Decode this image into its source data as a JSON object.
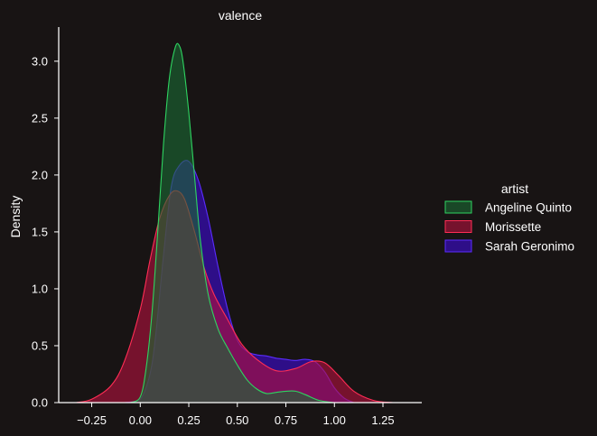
{
  "colors": {
    "background": "#181414",
    "axis": "#ffffff",
    "text": "#ffffff"
  },
  "chart_data": {
    "type": "area",
    "title": "valence",
    "xlabel": "",
    "ylabel": "Density",
    "xlim": [
      -0.42,
      1.45
    ],
    "ylim": [
      0,
      3.3
    ],
    "xticks": [
      -0.25,
      0.0,
      0.25,
      0.5,
      0.75,
      1.0,
      1.25
    ],
    "xtick_labels": [
      "−0.25",
      "0.00",
      "0.25",
      "0.50",
      "0.75",
      "1.00",
      "1.25"
    ],
    "yticks": [
      0.0,
      0.5,
      1.0,
      1.5,
      2.0,
      2.5,
      3.0
    ],
    "ytick_labels": [
      "0.0",
      "0.5",
      "1.0",
      "1.5",
      "2.0",
      "2.5",
      "3.0"
    ],
    "grid": false,
    "legend": {
      "title": "artist",
      "placement": "right",
      "entries": [
        "Angeline Quinto",
        "Morissette",
        "Sarah Geronimo"
      ]
    },
    "series": [
      {
        "name": "Sarah Geronimo",
        "fill": "#3d0ad6",
        "edge": "#5a2cff",
        "x": [
          -0.08,
          0.0,
          0.05,
          0.08,
          0.12,
          0.16,
          0.2,
          0.25,
          0.3,
          0.35,
          0.4,
          0.45,
          0.5,
          0.55,
          0.6,
          0.65,
          0.7,
          0.75,
          0.8,
          0.85,
          0.9,
          0.95,
          1.0,
          1.05,
          1.1
        ],
        "values": [
          0.0,
          0.03,
          0.25,
          0.6,
          1.3,
          1.9,
          2.08,
          2.12,
          1.95,
          1.62,
          1.2,
          0.82,
          0.55,
          0.45,
          0.42,
          0.41,
          0.39,
          0.38,
          0.37,
          0.38,
          0.36,
          0.27,
          0.13,
          0.04,
          0.0
        ]
      },
      {
        "name": "Morissette",
        "fill": "#b5103e",
        "edge": "#ff2d55",
        "x": [
          -0.33,
          -0.25,
          -0.15,
          -0.08,
          0.0,
          0.05,
          0.1,
          0.15,
          0.19,
          0.23,
          0.28,
          0.33,
          0.38,
          0.45,
          0.52,
          0.6,
          0.7,
          0.8,
          0.88,
          0.95,
          1.02,
          1.1,
          1.2,
          1.3
        ],
        "values": [
          0.0,
          0.03,
          0.15,
          0.37,
          0.82,
          1.25,
          1.62,
          1.82,
          1.86,
          1.78,
          1.5,
          1.18,
          0.95,
          0.73,
          0.52,
          0.38,
          0.28,
          0.3,
          0.36,
          0.35,
          0.24,
          0.1,
          0.02,
          0.0
        ]
      },
      {
        "name": "Angeline Quinto",
        "fill": "#1a6b33",
        "edge": "#2ed461",
        "x": [
          -0.05,
          0.0,
          0.03,
          0.06,
          0.09,
          0.12,
          0.15,
          0.18,
          0.2,
          0.22,
          0.25,
          0.28,
          0.31,
          0.35,
          0.4,
          0.45,
          0.5,
          0.55,
          0.6,
          0.65,
          0.7,
          0.75,
          0.8,
          0.85,
          0.92,
          1.0
        ],
        "values": [
          0.0,
          0.05,
          0.3,
          0.78,
          1.5,
          2.28,
          2.85,
          3.12,
          3.14,
          3.0,
          2.55,
          1.98,
          1.42,
          0.95,
          0.65,
          0.48,
          0.33,
          0.2,
          0.12,
          0.08,
          0.09,
          0.1,
          0.1,
          0.07,
          0.02,
          0.0
        ]
      }
    ]
  }
}
